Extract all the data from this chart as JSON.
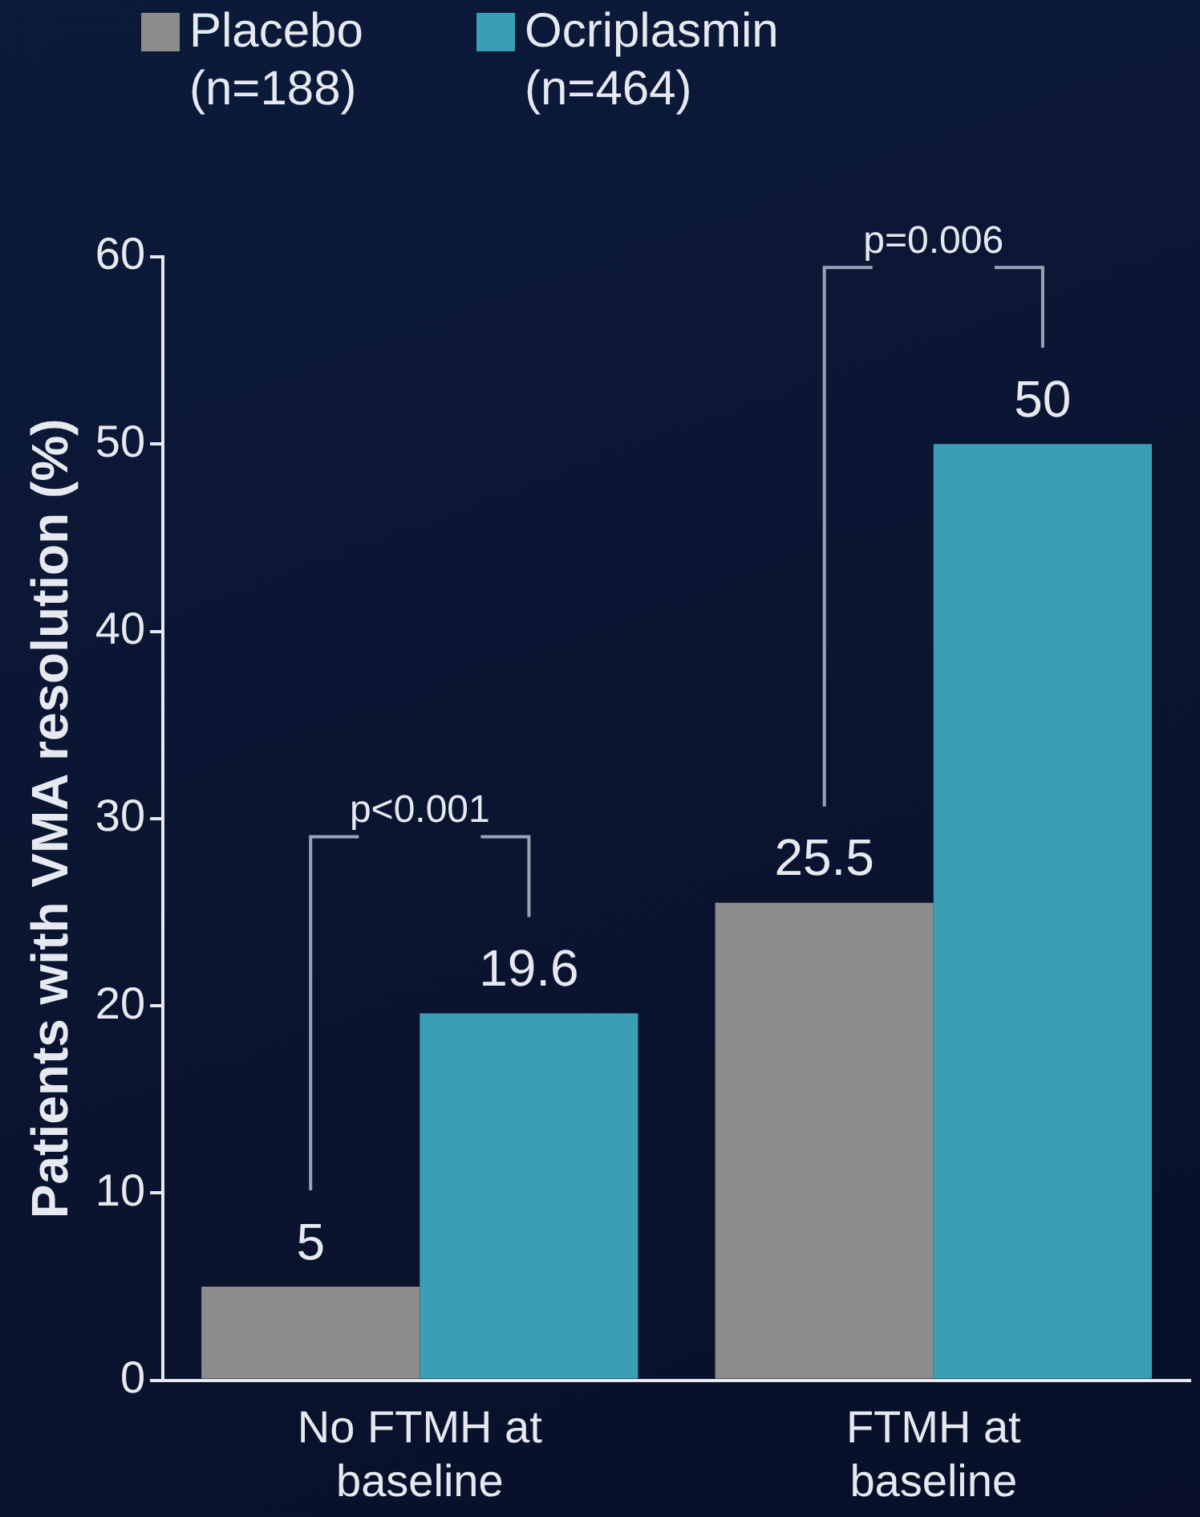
{
  "chart_data": {
    "type": "bar",
    "ylabel": "Patients with VMA resolution (%)",
    "categories": [
      "No FTMH at baseline",
      "FTMH at baseline"
    ],
    "series": [
      {
        "name": "Placebo (n=188)",
        "color": "#8c8c8c",
        "values": [
          5,
          25.5
        ]
      },
      {
        "name": "Ocriplasmin (n=464)",
        "color": "#3a9fb5",
        "values": [
          19.6,
          50
        ]
      }
    ],
    "ylim": [
      0,
      60
    ],
    "yticks": [
      0,
      10,
      20,
      30,
      40,
      50,
      60
    ],
    "grid": false,
    "legend": "top left",
    "data_labels": true,
    "annotations": [
      "p<0.001",
      "p=0.006"
    ]
  }
}
